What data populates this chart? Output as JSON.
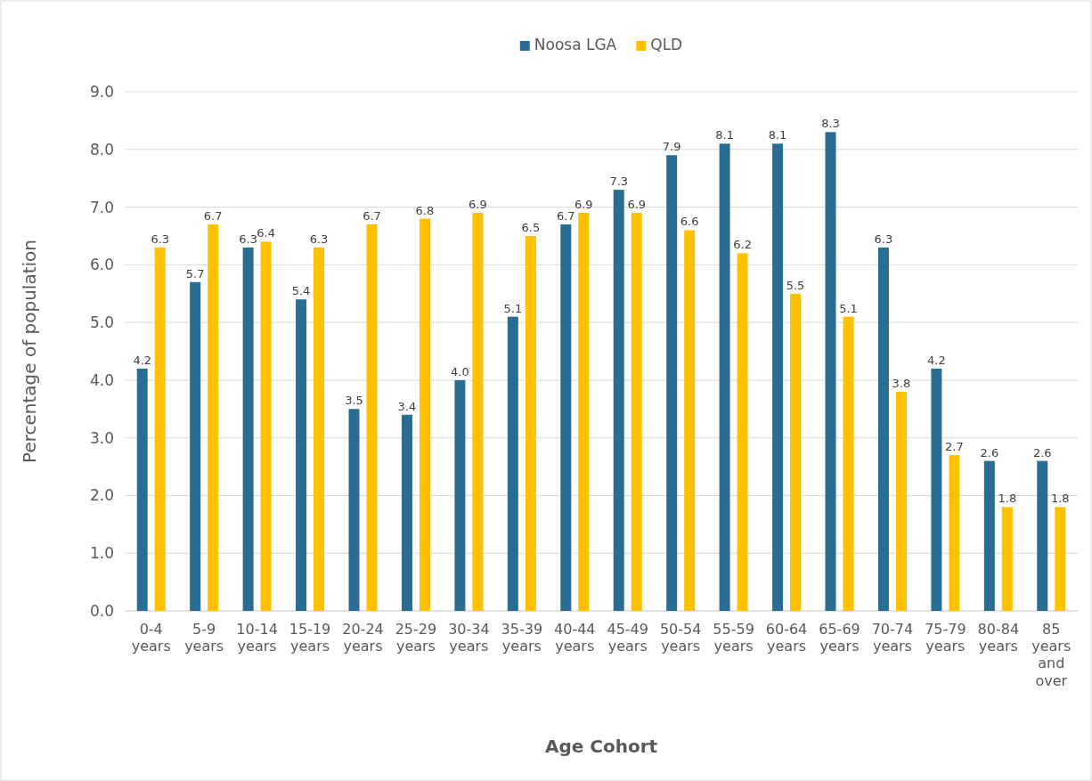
{
  "chart_data": {
    "type": "bar",
    "xlabel": "Age Cohort",
    "ylabel": "Percentage of population",
    "categories": [
      "0-4 years",
      "5-9 years",
      "10-14 years",
      "15-19 years",
      "20-24 years",
      "25-29 years",
      "30-34 years",
      "35-39 years",
      "40-44 years",
      "45-49 years",
      "50-54 years",
      "55-59 years",
      "60-64 years",
      "65-69 years",
      "70-74 years",
      "75-79 years",
      "80-84 years",
      "85 years and over"
    ],
    "series": [
      {
        "name": "Noosa LGA",
        "color": "#2a6d92",
        "values": [
          4.2,
          5.7,
          6.3,
          5.4,
          3.5,
          3.4,
          4.0,
          5.1,
          6.7,
          7.3,
          7.9,
          8.1,
          8.1,
          8.3,
          6.3,
          4.2,
          2.6,
          2.6
        ],
        "value_labels": [
          "4.2",
          "5.7",
          "6.3",
          "5.4",
          "3.5",
          "3.4",
          "4.0",
          "5.1",
          "6.7",
          "7.3",
          "7.9",
          "8.1",
          "8.1",
          "8.3",
          "6.3",
          "4.2",
          "2.6",
          "2.6"
        ]
      },
      {
        "name": "QLD",
        "color": "#ffc000",
        "values": [
          6.3,
          6.7,
          6.4,
          6.3,
          6.7,
          6.8,
          6.9,
          6.5,
          6.9,
          6.9,
          6.6,
          6.2,
          5.5,
          5.1,
          3.8,
          2.7,
          1.8,
          1.8
        ],
        "value_labels": [
          "6.3",
          "6.7",
          "6.4",
          "6.3",
          "6.7",
          "6.8",
          "6.9",
          "6.5",
          "6.9",
          "6.9",
          "6.6",
          "6.2",
          "5.5",
          "5.1",
          "3.8",
          "2.7",
          "1.8",
          "1.8"
        ]
      }
    ],
    "ylim": [
      0,
      9
    ],
    "yticks": [
      {
        "value": 0,
        "label": "0.0"
      },
      {
        "value": 1,
        "label": "1.0"
      },
      {
        "value": 2,
        "label": "2.0"
      },
      {
        "value": 3,
        "label": "3.0"
      },
      {
        "value": 4,
        "label": "4.0"
      },
      {
        "value": 5,
        "label": "5.0"
      },
      {
        "value": 6,
        "label": "6.0"
      },
      {
        "value": 7,
        "label": "7.0"
      },
      {
        "value": 8,
        "label": "8.0"
      },
      {
        "value": 9,
        "label": "9.0"
      }
    ],
    "grid": "y",
    "legend": "top"
  }
}
